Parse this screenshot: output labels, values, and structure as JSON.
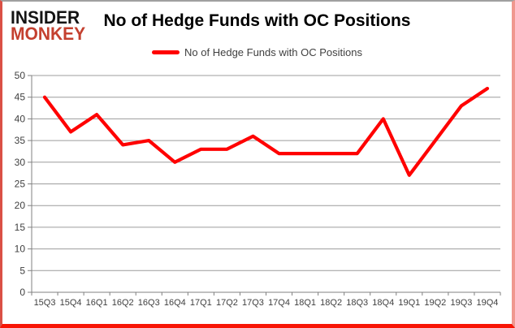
{
  "logo": {
    "line1": "INSIDER",
    "line2": "MONKEY"
  },
  "header": {
    "title": "No of Hedge Funds with OC Positions"
  },
  "legend": {
    "label": "No of Hedge Funds with OC Positions",
    "swatch_color": "#ff0000"
  },
  "chart_data": {
    "type": "line",
    "title": "No of Hedge Funds with OC Positions",
    "categories": [
      "15Q3",
      "15Q4",
      "16Q1",
      "16Q2",
      "16Q3",
      "16Q4",
      "17Q1",
      "17Q2",
      "17Q3",
      "17Q4",
      "18Q1",
      "18Q2",
      "18Q3",
      "18Q4",
      "19Q1",
      "19Q2",
      "19Q3",
      "19Q4"
    ],
    "series": [
      {
        "name": "No of Hedge Funds with OC Positions",
        "color": "#ff0000",
        "values": [
          45,
          37,
          41,
          34,
          35,
          30,
          33,
          33,
          36,
          32,
          32,
          32,
          32,
          40,
          27,
          35,
          43,
          47
        ]
      }
    ],
    "xlabel": "",
    "ylabel": "",
    "ylim": [
      0,
      50
    ],
    "ytick_step": 5,
    "grid": true,
    "legend_position": "top-center",
    "grid_color": "#9c9c9c",
    "axis_color": "#808080",
    "label_color": "#3f3f3f"
  }
}
